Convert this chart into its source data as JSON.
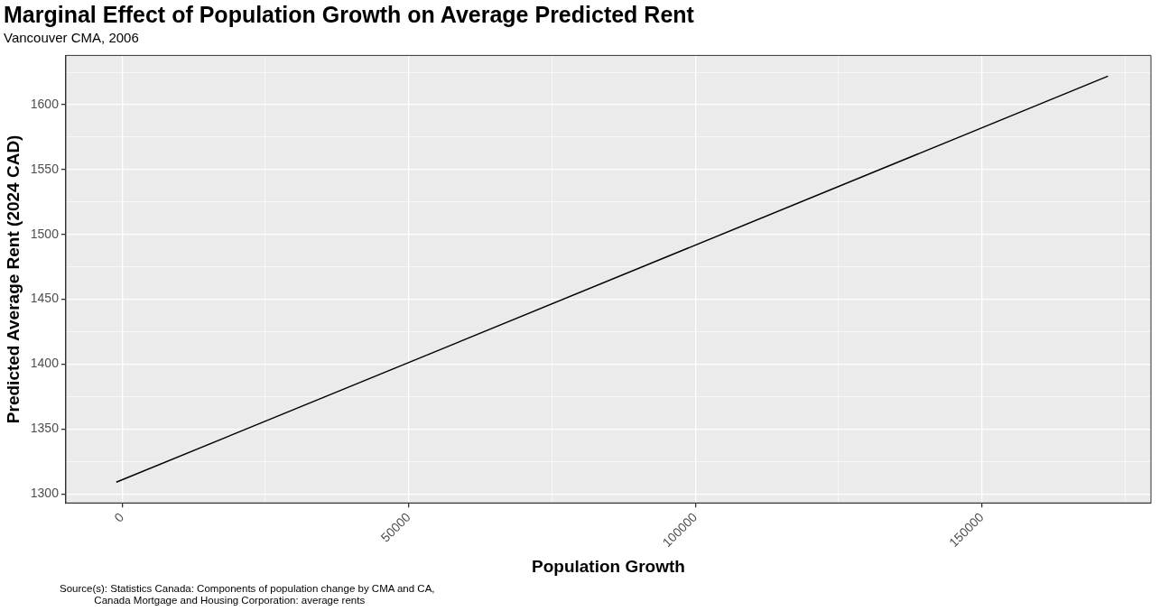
{
  "chart_data": {
    "type": "line",
    "title": "Marginal Effect of Population Growth on Average Predicted Rent",
    "subtitle": "Vancouver CMA, 2006",
    "xlabel": "Population Growth",
    "ylabel": "Predicted Average Rent (2024 CAD)",
    "series": [
      {
        "color": "#000000",
        "x": [
          -1000,
          172000
        ],
        "values": [
          1309,
          1622
        ]
      }
    ],
    "xlim": [
      -9800,
      179500
    ],
    "ylim": [
      1293,
      1638
    ],
    "xticks": [
      0,
      {
        "value": 25000,
        "label": null
      },
      50000,
      {
        "value": 75000,
        "label": null
      },
      100000,
      {
        "value": 125000,
        "label": null
      },
      150000,
      {
        "value": 175000,
        "label": null
      }
    ],
    "yticks": [
      1300,
      {
        "value": 1325,
        "label": null
      },
      1350,
      {
        "value": 1375,
        "label": null
      },
      1400,
      {
        "value": 1425,
        "label": null
      },
      1450,
      {
        "value": 1475,
        "label": null
      },
      1500,
      {
        "value": 1525,
        "label": null
      },
      1550,
      {
        "value": 1575,
        "label": null
      },
      1600,
      {
        "value": 1625,
        "label": null
      }
    ],
    "grid": true,
    "legend": false,
    "marker": "none",
    "line_style": "solid",
    "annotations": [
      "Source(s): Statistics Canada: Components of population change by CMA and CA,\n            Canada Mortgage and Housing Corporation: average rents"
    ]
  }
}
